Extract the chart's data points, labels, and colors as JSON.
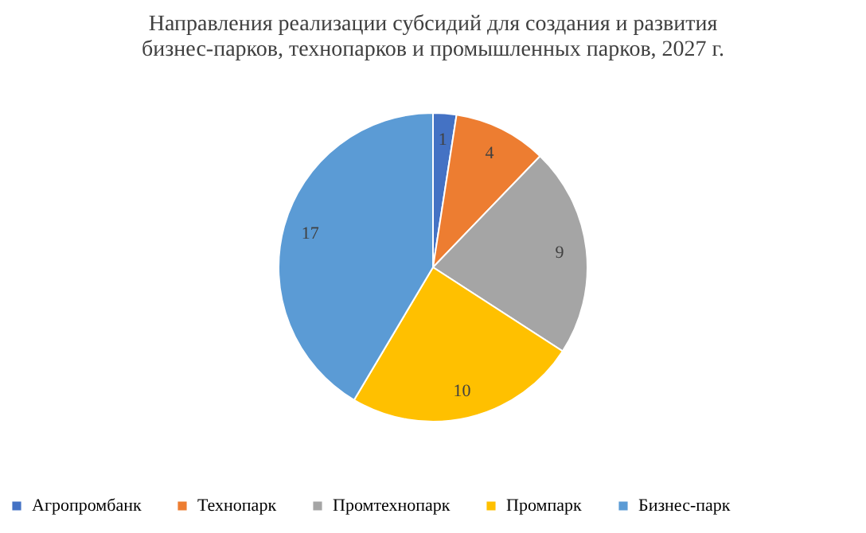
{
  "chart_data": {
    "type": "pie",
    "title": "Направления реализации субсидий для создания и развития бизнес-парков, технопарков и промышленных парков, 2027 г.",
    "categories": [
      "Агропромбанк",
      "Технопарк",
      "Промтехнопарк",
      "Промпарк",
      "Бизнес-парк"
    ],
    "values": [
      1,
      4,
      9,
      10,
      17
    ],
    "colors": [
      "#4472c4",
      "#ed7d31",
      "#a5a5a5",
      "#ffc000",
      "#5b9bd5"
    ],
    "data_labels": true,
    "legend": "bottom"
  }
}
